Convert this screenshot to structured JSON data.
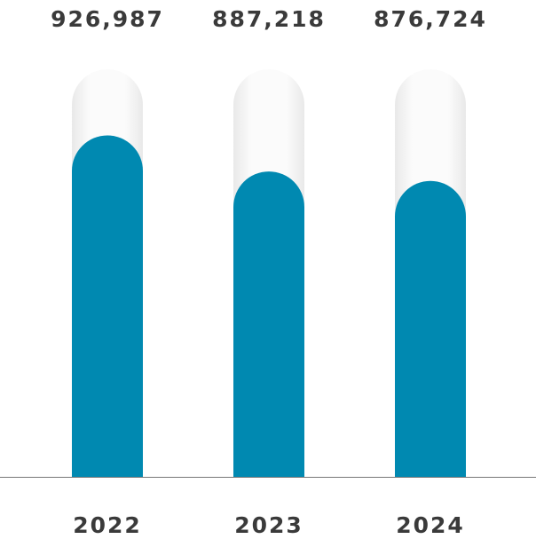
{
  "chart_data": {
    "type": "bar",
    "categories": [
      "2022",
      "2023",
      "2024"
    ],
    "values": [
      926987,
      887218,
      876724
    ],
    "value_labels": [
      "926,987",
      "887,218",
      "876,724"
    ],
    "color": "#0089b1",
    "ylim": [
      550000,
      1000000
    ]
  }
}
